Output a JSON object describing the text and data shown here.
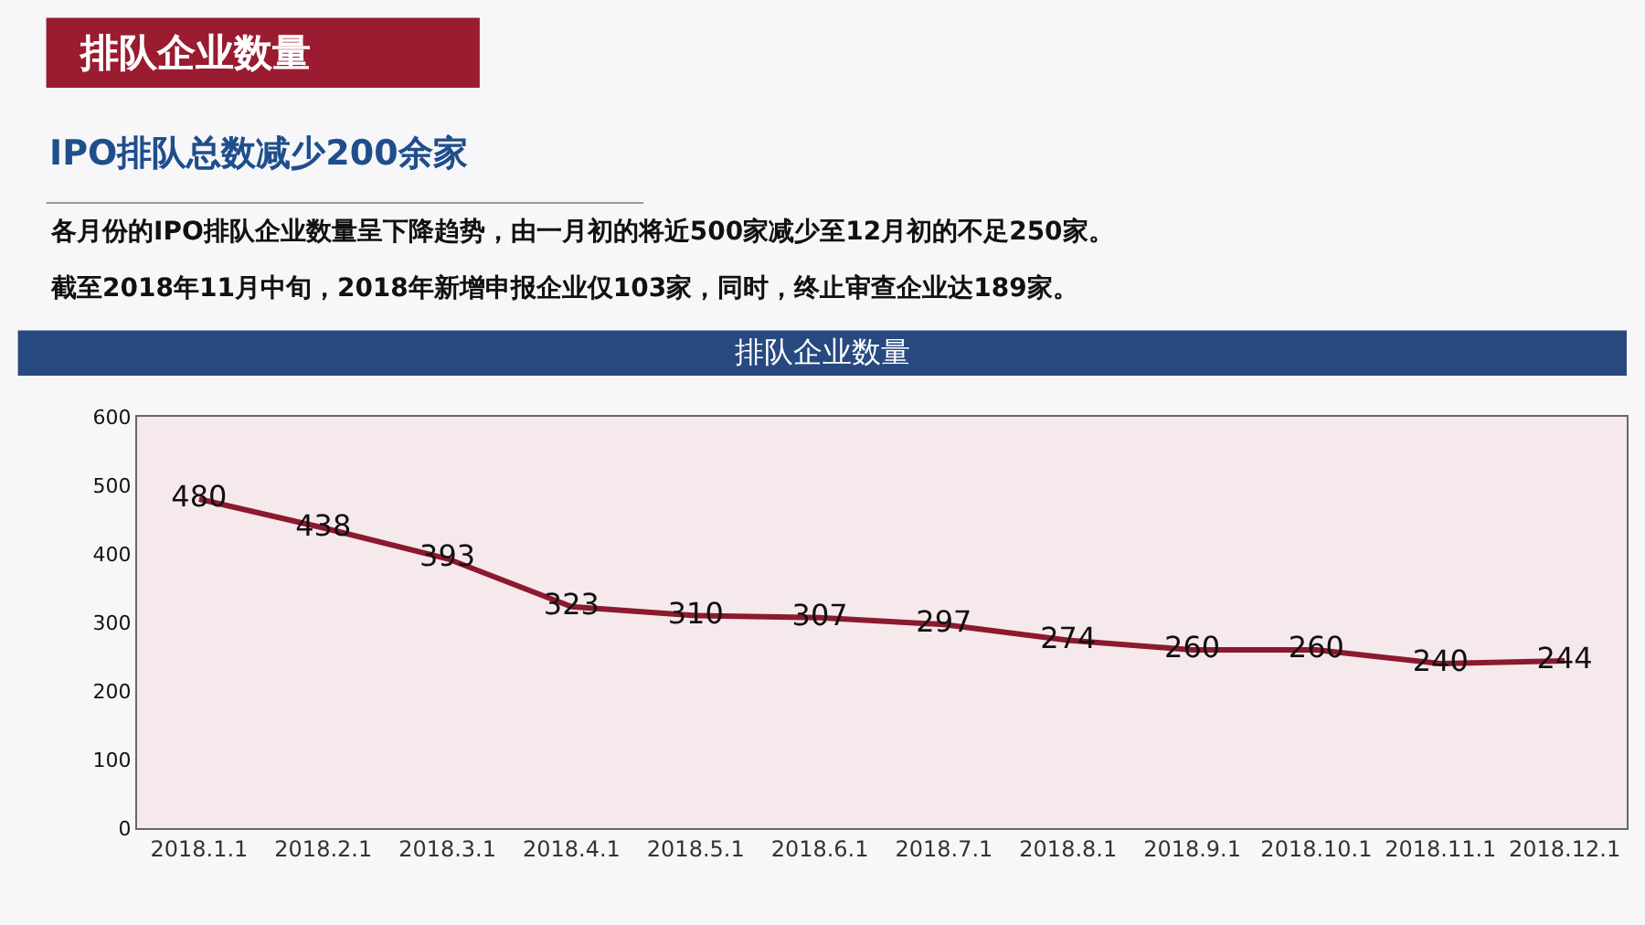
{
  "chart_data": {
    "type": "line",
    "title": "排队企业数量",
    "subtitle": "IPO排队总数减少200余家",
    "annotations": [
      "各月份的IPO排队企业数量呈下降趋势，由一月初的将近500家减少至12月初的不足250家。",
      "截至2018年11月中旬，2018年新增申报企业仅103家，同时，终止审查企业达189家。",
      "排队企业数量"
    ],
    "categories": [
      "2018.1.1",
      "2018.2.1",
      "2018.3.1",
      "2018.4.1",
      "2018.5.1",
      "2018.6.1",
      "2018.7.1",
      "2018.8.1",
      "2018.9.1",
      "2018.10.1",
      "2018.11.1",
      "2018.12.1"
    ],
    "values": [
      480,
      438,
      393,
      323,
      310,
      307,
      297,
      274,
      260,
      260,
      240,
      244
    ],
    "color": "#8b1a2e",
    "ylim": [
      0,
      600
    ],
    "yticks": [
      0,
      100,
      200,
      300,
      400,
      500,
      600
    ],
    "data_labels": true,
    "grid": false,
    "legend": false,
    "marker": "none",
    "line_style": "solid"
  }
}
